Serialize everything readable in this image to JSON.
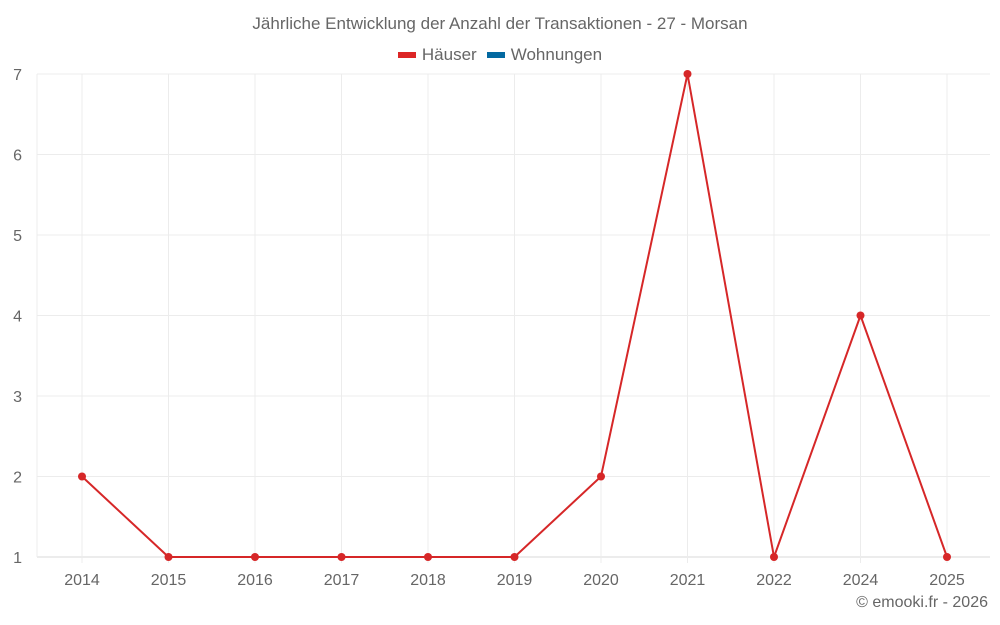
{
  "chart_data": {
    "type": "line",
    "title": "Jährliche Entwicklung der Anzahl der Transaktionen - 27 - Morsan",
    "xlabel": "",
    "ylabel": "",
    "categories": [
      "2014",
      "2015",
      "2016",
      "2017",
      "2018",
      "2019",
      "2020",
      "2021",
      "2022",
      "2024",
      "2025"
    ],
    "series": [
      {
        "name": "Häuser",
        "color": "#d62728",
        "values": [
          2,
          1,
          1,
          1,
          1,
          1,
          2,
          7,
          1,
          4,
          1
        ]
      },
      {
        "name": "Wohnungen",
        "color": "#1f77b4",
        "values": []
      }
    ],
    "ylim": [
      1,
      7
    ],
    "yticks": [
      1,
      2,
      3,
      4,
      5,
      6,
      7
    ],
    "grid": true,
    "legend_position": "top"
  },
  "legend": {
    "items": [
      {
        "label": "Häuser",
        "color": "#dc2626"
      },
      {
        "label": "Wohnungen",
        "color": "#0369a1"
      }
    ]
  },
  "credit": "© emooki.fr - 2026"
}
